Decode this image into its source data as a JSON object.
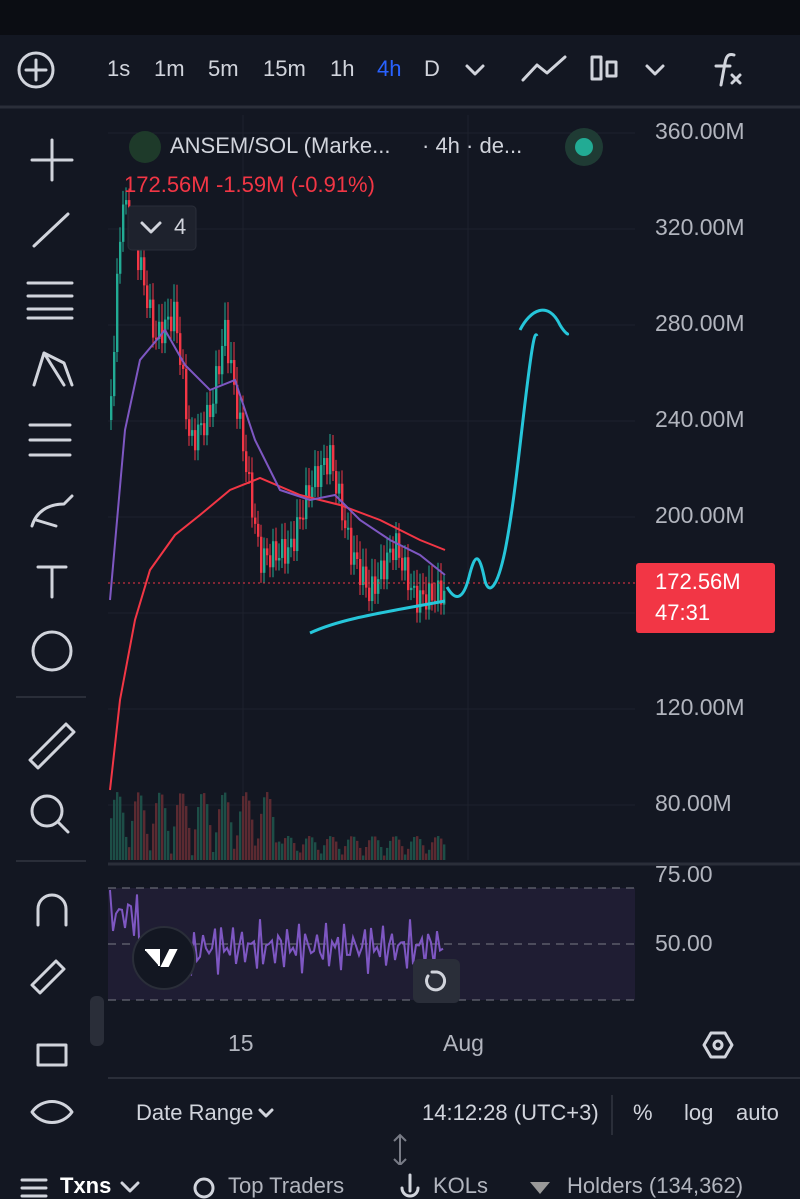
{
  "toolbar": {
    "timeframes": [
      "1s",
      "1m",
      "5m",
      "15m",
      "1h",
      "4h",
      "D"
    ],
    "active": "4h"
  },
  "legend": {
    "symbol": "ANSEM/SOL (Marke...",
    "interval": "· 4h · de...",
    "price": "172.56M",
    "change": "-1.59M (-0.91%)",
    "indicators": "4"
  },
  "price_axis": {
    "labels": [
      "360.00M",
      "320.00M",
      "280.00M",
      "240.00M",
      "200.00M",
      "120.00M",
      "80.00M"
    ],
    "last_price": "172.56M",
    "countdown": "47:31"
  },
  "rsi_axis": {
    "labels": [
      "75.00",
      "50.00"
    ]
  },
  "time_axis": {
    "labels": [
      "15",
      "Aug"
    ]
  },
  "bottom_bar": {
    "date_range": "Date Range",
    "time": "14:12:28 (UTC+3)",
    "percent": "%",
    "log": "log",
    "auto": "auto"
  },
  "tabs": [
    "Txns",
    "Top Traders",
    "KOLs",
    "Holders (134,362)"
  ]
}
